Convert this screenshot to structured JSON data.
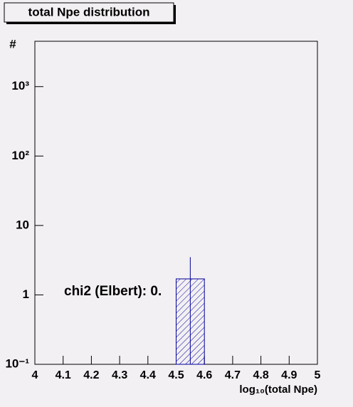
{
  "chart_data": {
    "type": "histogram",
    "title": "total Npe distribution",
    "x_label": "log₁₀(total Npe)",
    "y_label": "#",
    "bins": [
      4.0,
      4.1,
      4.2,
      4.3,
      4.4,
      4.5,
      4.6,
      4.7,
      4.8,
      4.9,
      5.0
    ],
    "values": [
      0,
      0,
      0,
      0,
      0,
      1.7,
      0,
      0,
      0,
      0
    ],
    "errors": [
      0,
      0,
      0,
      0,
      0,
      1.8,
      0,
      0,
      0,
      0
    ],
    "color": "#000099",
    "xlim": [
      4,
      5
    ],
    "xticks": [
      4,
      4.1,
      4.2,
      4.3,
      4.4,
      4.5,
      4.6,
      4.7,
      4.8,
      4.9,
      5
    ],
    "ylim": [
      0.1,
      4500
    ],
    "log_y": true,
    "yticks": [
      {
        "value": 0.1,
        "label": "10⁻¹"
      },
      1,
      10,
      {
        "value": 100,
        "label": "10²"
      },
      {
        "value": 1000,
        "label": "10³"
      }
    ],
    "annotation": "chi2 (Elbert): 0."
  }
}
